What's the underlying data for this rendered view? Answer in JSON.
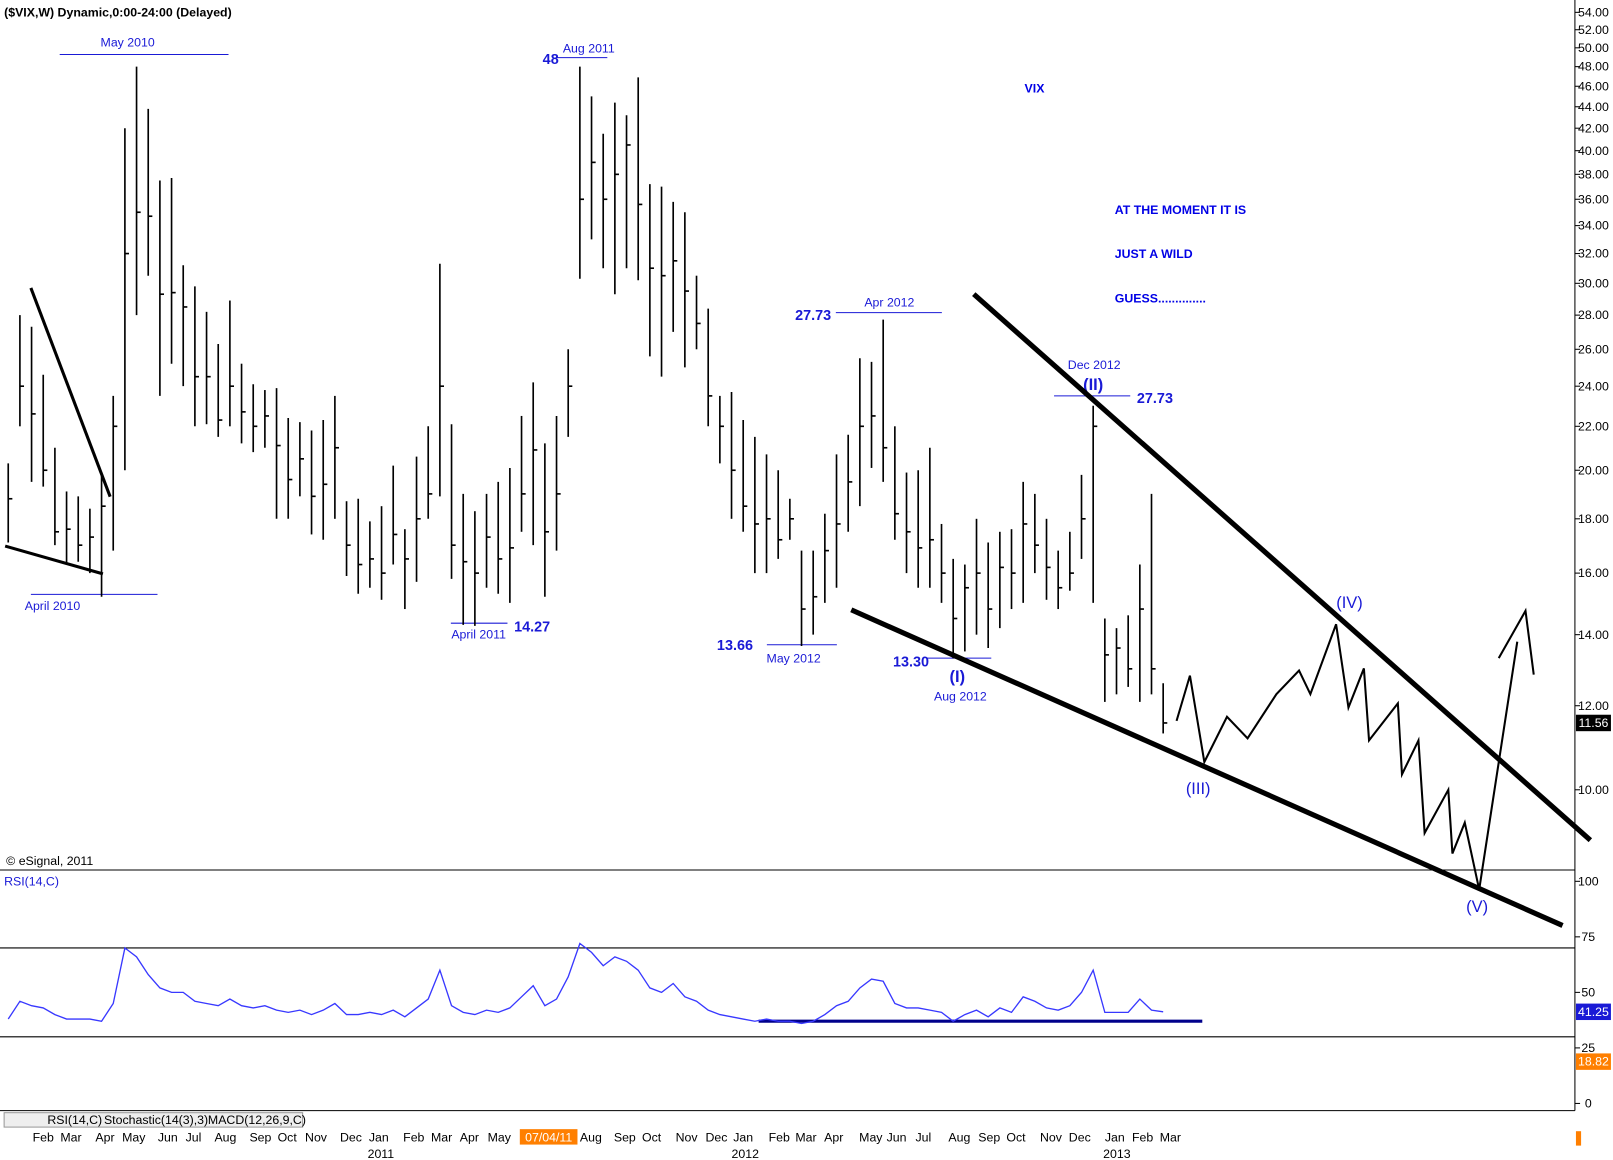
{
  "chart_data": [
    {
      "type": "hlc",
      "title": "($VIX,W) Dynamic,0:00-24:00 (Delayed)",
      "heading": "VIX",
      "note": [
        "AT THE MOMENT IT IS",
        "JUST A WILD",
        "GUESS.............."
      ],
      "copyright": "© eSignal, 2011",
      "color": "#000000",
      "log_scale": true,
      "high": [
        20.3,
        28.0,
        27.3,
        24.6,
        21.0,
        19.1,
        18.9,
        18.4,
        19.8,
        23.5,
        42.0,
        48.0,
        43.8,
        37.5,
        37.7,
        31.2,
        29.8,
        28.2,
        26.3,
        28.9,
        25.2,
        24.1,
        23.8,
        23.9,
        22.4,
        22.2,
        21.8,
        22.3,
        23.5,
        18.7,
        18.8,
        17.9,
        18.5,
        20.2,
        17.6,
        20.6,
        22.0,
        31.3,
        22.1,
        19.0,
        18.3,
        19.0,
        19.5,
        20.1,
        22.5,
        24.2,
        21.2,
        22.5,
        26.0,
        48.0,
        45.0,
        41.5,
        44.4,
        43.2,
        46.9,
        37.2,
        37.0,
        35.8,
        35.0,
        30.5,
        28.4,
        23.5,
        23.7,
        22.3,
        21.5,
        20.7,
        20.0,
        18.8,
        16.8,
        16.8,
        18.2,
        20.7,
        21.6,
        25.5,
        25.3,
        27.73,
        22.0,
        19.9,
        20.0,
        21.0,
        17.8,
        16.5,
        16.3,
        18.0,
        17.1,
        17.5,
        17.6,
        19.5,
        19.0,
        18.0,
        16.8,
        17.5,
        19.8,
        23.0,
        14.5,
        14.2,
        14.6,
        16.3,
        19.0,
        12.6
      ],
      "low": [
        17.1,
        22.0,
        19.5,
        19.3,
        17.0,
        16.3,
        16.4,
        16.0,
        15.2,
        16.8,
        20.0,
        28.0,
        30.5,
        23.5,
        25.2,
        24.0,
        22.0,
        22.1,
        21.5,
        22.0,
        21.2,
        20.8,
        21.0,
        18.0,
        18.0,
        18.9,
        17.4,
        17.2,
        18.0,
        15.9,
        15.3,
        15.5,
        15.1,
        16.3,
        14.8,
        15.7,
        18.0,
        18.9,
        15.8,
        14.3,
        14.27,
        15.5,
        15.3,
        15.0,
        17.5,
        17.0,
        15.2,
        16.8,
        21.5,
        30.3,
        33.0,
        31.0,
        29.3,
        31.0,
        30.2,
        25.6,
        24.5,
        27.0,
        25.0,
        26.0,
        22.0,
        20.3,
        18.0,
        17.5,
        16.0,
        16.0,
        16.5,
        17.2,
        13.66,
        14.0,
        15.0,
        15.5,
        17.5,
        18.5,
        20.1,
        19.5,
        17.2,
        16.0,
        15.5,
        15.5,
        15.0,
        13.3,
        13.5,
        14.0,
        13.6,
        14.2,
        14.8,
        15.0,
        16.0,
        15.1,
        14.8,
        15.4,
        16.5,
        15.0,
        12.1,
        12.3,
        12.5,
        12.1,
        12.3,
        11.3
      ],
      "close": [
        18.8,
        24.0,
        22.6,
        20.0,
        17.5,
        17.6,
        17.0,
        17.3,
        18.5,
        22.0,
        32.0,
        35.0,
        34.7,
        29.3,
        29.4,
        28.5,
        24.5,
        24.5,
        22.3,
        24.0,
        22.7,
        22.0,
        22.5,
        21.1,
        19.6,
        20.5,
        18.9,
        19.4,
        21.0,
        17.0,
        16.3,
        16.5,
        16.0,
        17.4,
        16.5,
        18.0,
        19.0,
        24.0,
        17.0,
        16.4,
        16.0,
        17.3,
        16.5,
        16.9,
        19.0,
        20.9,
        17.5,
        19.0,
        24.0,
        36.0,
        39.0,
        36.0,
        38.0,
        40.5,
        35.6,
        31.0,
        30.5,
        31.5,
        29.5,
        27.5,
        23.5,
        22.0,
        20.0,
        18.5,
        17.8,
        18.0,
        17.2,
        18.0,
        14.8,
        15.2,
        16.8,
        17.8,
        19.5,
        22.0,
        22.5,
        21.0,
        18.2,
        17.5,
        16.9,
        17.2,
        16.0,
        14.5,
        15.5,
        16.0,
        14.8,
        16.2,
        16.0,
        17.8,
        17.0,
        16.2,
        15.5,
        16.0,
        18.0,
        22.0,
        13.4,
        13.6,
        13.0,
        14.8,
        13.0,
        11.56
      ],
      "last_value": 11.56,
      "ylim": [
        10,
        54
      ],
      "yticks": [
        {
          "value": 10,
          "label": "10.00"
        },
        {
          "value": 12,
          "label": "12.00"
        },
        {
          "value": 14,
          "label": "14.00"
        },
        {
          "value": 16,
          "label": "16.00"
        },
        {
          "value": 18,
          "label": "18.00"
        },
        {
          "value": 20,
          "label": "20.00"
        },
        {
          "value": 22,
          "label": "22.00"
        },
        {
          "value": 24,
          "label": "24.00"
        },
        {
          "value": 26,
          "label": "26.00"
        },
        {
          "value": 28,
          "label": "28.00"
        },
        {
          "value": 30,
          "label": "30.00"
        },
        {
          "value": 32,
          "label": "32.00"
        },
        {
          "value": 34,
          "label": "34.00"
        },
        {
          "value": 36,
          "label": "36.00"
        },
        {
          "value": 38,
          "label": "38.00"
        },
        {
          "value": 40,
          "label": "40.00"
        },
        {
          "value": 42,
          "label": "42.00"
        },
        {
          "value": 44,
          "label": "44.00"
        },
        {
          "value": 46,
          "label": "46.00"
        },
        {
          "value": 48,
          "label": "48.00"
        },
        {
          "value": 50,
          "label": "50.00"
        },
        {
          "value": 52,
          "label": "52.00"
        },
        {
          "value": 54,
          "label": "54.00"
        }
      ],
      "annotations": [
        "May 2010",
        "April 2010",
        "48",
        "Aug 2011",
        "April 2011",
        "14.27",
        "27.73",
        "Apr 2012",
        "13.66",
        "May 2012",
        "13.30",
        "(I)",
        "Aug 2012",
        "Dec 2012",
        "(II)",
        "27.73",
        "(III)",
        "(IV)",
        "(V)"
      ],
      "x_labels": [
        "Feb",
        "Mar",
        "Apr",
        "May",
        "Jun",
        "Jul",
        "Aug",
        "Sep",
        "Oct",
        "Nov",
        "Dec",
        "Jan",
        "Feb",
        "Mar",
        "Apr",
        "May",
        "07/04/11",
        "Aug",
        "Sep",
        "Oct",
        "Nov",
        "Dec",
        "Jan",
        "Feb",
        "Mar",
        "Apr",
        "May",
        "Jun",
        "Jul",
        "Aug",
        "Sep",
        "Oct",
        "Nov",
        "Dec",
        "Jan",
        "Feb",
        "Mar"
      ],
      "year_labels": [
        "2011",
        "2012",
        "2013"
      ]
    },
    {
      "type": "line",
      "title": "RSI(14,C)",
      "color": "#3838ff",
      "values": [
        38,
        46,
        44,
        43,
        40,
        38,
        38,
        38,
        37,
        45,
        70,
        66,
        58,
        52,
        50,
        50,
        46,
        45,
        44,
        47,
        44,
        43,
        44,
        42,
        41,
        42,
        40,
        42,
        45,
        40,
        40,
        41,
        40,
        42,
        39,
        43,
        47,
        60,
        44,
        41,
        40,
        42,
        41,
        43,
        48,
        53,
        44,
        47,
        57,
        72,
        68,
        62,
        66,
        64,
        60,
        52,
        50,
        54,
        48,
        46,
        42,
        40,
        39,
        38,
        37,
        38,
        37,
        37,
        36,
        37,
        40,
        44,
        46,
        52,
        56,
        55,
        45,
        43,
        43,
        42,
        41,
        37,
        40,
        42,
        39,
        43,
        41,
        48,
        46,
        43,
        42,
        44,
        50,
        60,
        41,
        41,
        41,
        47,
        42,
        41.25
      ],
      "ylim": [
        0,
        100
      ],
      "yticks": [
        100,
        75,
        50,
        25,
        0
      ],
      "levels": [
        70,
        30
      ],
      "last_value": 41.25,
      "other_value": 18.82,
      "tabs": [
        "RSI(14,C)",
        "Stochastic(14(3),3)",
        "MACD(12,26,9,C)"
      ]
    }
  ]
}
